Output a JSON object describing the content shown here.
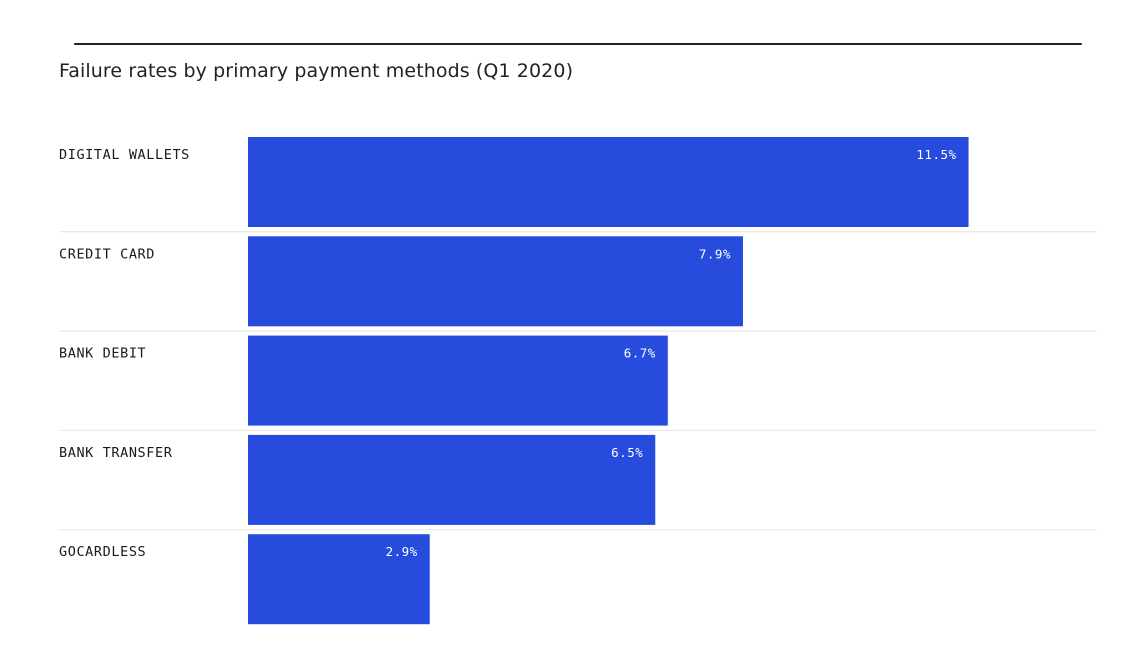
{
  "colors": {
    "bar": "#264bdd",
    "separator": "#e4e4e4",
    "title_rule": "#222222"
  },
  "chart_data": {
    "type": "bar",
    "orientation": "horizontal",
    "title": "Failure rates by primary payment methods (Q1 2020)",
    "categories": [
      "DIGITAL WALLETS",
      "CREDIT CARD",
      "BANK DEBIT",
      "BANK TRANSFER",
      "GOCARDLESS"
    ],
    "values": [
      11.5,
      7.9,
      6.7,
      6.5,
      2.9
    ],
    "value_labels": [
      "11.5%",
      "7.9%",
      "6.7%",
      "6.5%",
      "2.9%"
    ],
    "xlabel": "",
    "ylabel": "",
    "xlim": [
      0,
      13.55
    ],
    "grid": false,
    "legend": "none"
  }
}
